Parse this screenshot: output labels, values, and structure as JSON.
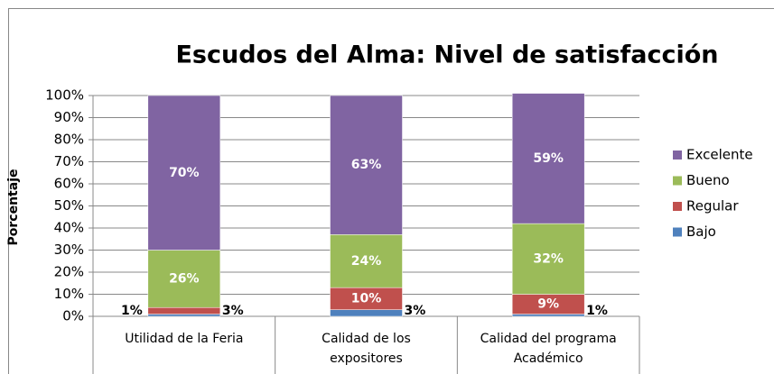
{
  "chart_data": {
    "type": "stacked_bar",
    "title": "Escudos del Alma: Nivel de satisfacción",
    "y_label": "Porcentaje",
    "categories": [
      "Utilidad de la Feria",
      "Calidad de los expositores",
      "Calidad del programa Académico"
    ],
    "series": [
      {
        "name": "Bajo",
        "color": "#4f81bd",
        "values": [
          1,
          3,
          1
        ],
        "value_labels": [
          "1%",
          "3%",
          "1%"
        ]
      },
      {
        "name": "Regular",
        "color": "#c0504d",
        "values": [
          3,
          10,
          9
        ],
        "value_labels": [
          "3%",
          "10%",
          "9%"
        ]
      },
      {
        "name": "Bueno",
        "color": "#9bbb59",
        "values": [
          26,
          24,
          32
        ],
        "value_labels": [
          "26%",
          "24%",
          "32%"
        ]
      },
      {
        "name": "Excelente",
        "color": "#8064a2",
        "values": [
          70,
          63,
          59
        ],
        "value_labels": [
          "70%",
          "63%",
          "59%"
        ]
      }
    ],
    "ylim": [
      0,
      100
    ],
    "yticks": [
      {
        "value": 0,
        "label": "0%"
      },
      {
        "value": 10,
        "label": "10%"
      },
      {
        "value": 20,
        "label": "20%"
      },
      {
        "value": 30,
        "label": "30%"
      },
      {
        "value": 40,
        "label": "40%"
      },
      {
        "value": 50,
        "label": "50%"
      },
      {
        "value": 60,
        "label": "60%"
      },
      {
        "value": 70,
        "label": "70%"
      },
      {
        "value": 80,
        "label": "80%"
      },
      {
        "value": 90,
        "label": "90%"
      },
      {
        "value": 100,
        "label": "100%"
      }
    ],
    "grid": true,
    "legend": "right"
  }
}
